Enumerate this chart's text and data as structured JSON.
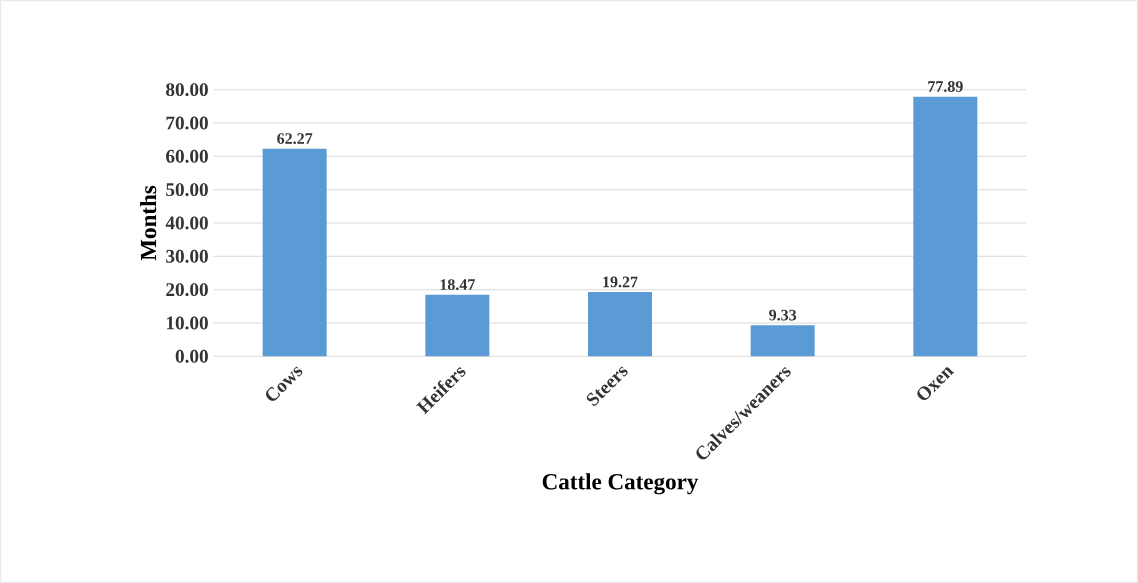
{
  "chart_data": {
    "type": "bar",
    "xlabel": "Cattle Category",
    "ylabel": "Months",
    "categories": [
      "Cows",
      "Heifers",
      "Steers",
      "Calves/weaners",
      "Oxen"
    ],
    "values": [
      62.27,
      18.47,
      19.27,
      9.33,
      77.89
    ],
    "color": "#5b9bd5",
    "ylim": [
      0,
      80
    ],
    "yticks": [
      {
        "value": 0,
        "label": "0.00"
      },
      {
        "value": 10,
        "label": "10.00"
      },
      {
        "value": 20,
        "label": "20.00"
      },
      {
        "value": 30,
        "label": "30.00"
      },
      {
        "value": 40,
        "label": "40.00"
      },
      {
        "value": 50,
        "label": "50.00"
      },
      {
        "value": 60,
        "label": "60.00"
      },
      {
        "value": 70,
        "label": "70.00"
      },
      {
        "value": 80,
        "label": "80.00"
      }
    ],
    "grid": "y",
    "data_labels": true
  }
}
